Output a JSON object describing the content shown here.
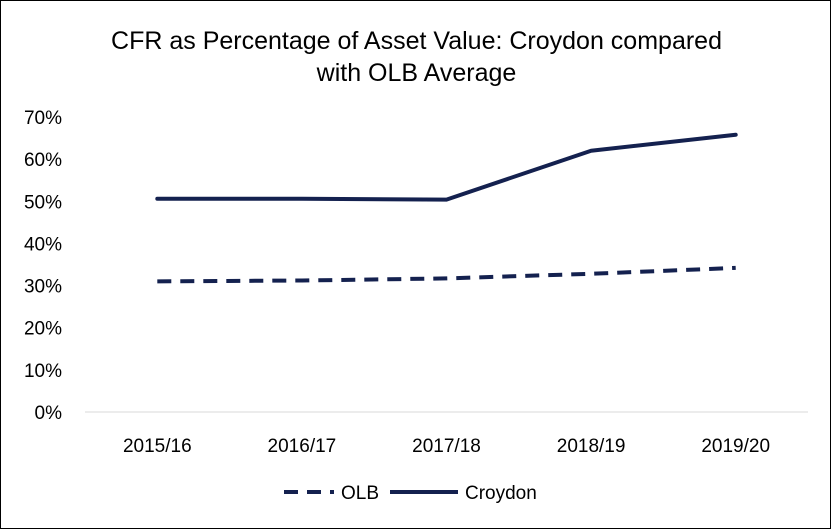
{
  "chart_data": {
    "type": "line",
    "title_line1": "CFR as Percentage of Asset Value: Croydon compared",
    "title_line2": "with OLB Average",
    "categories": [
      "2015/16",
      "2016/17",
      "2017/18",
      "2018/19",
      "2019/20"
    ],
    "series": [
      {
        "name": "OLB",
        "values": [
          31,
          31.2,
          31.7,
          32.8,
          34.2
        ],
        "style": "dashed",
        "color": "#14214f"
      },
      {
        "name": "Croydon",
        "values": [
          50.6,
          50.6,
          50.4,
          62,
          65.8
        ],
        "style": "solid",
        "color": "#14214f"
      }
    ],
    "ylim": [
      0,
      70
    ],
    "yticks": [
      "0%",
      "10%",
      "20%",
      "30%",
      "40%",
      "50%",
      "60%",
      "70%"
    ],
    "grid": false,
    "legend_position": "bottom"
  }
}
